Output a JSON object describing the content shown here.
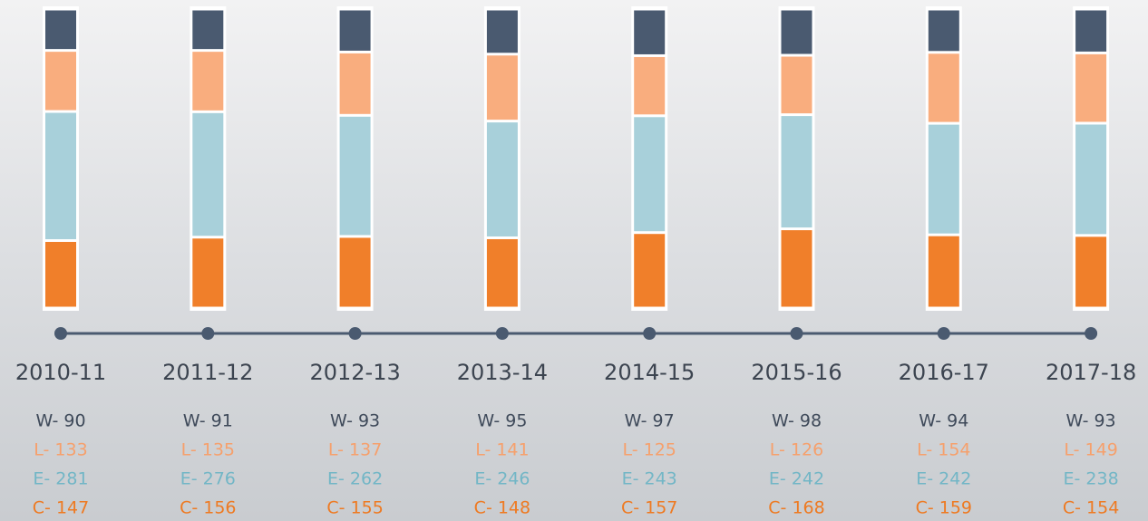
{
  "chart_data": {
    "type": "bar",
    "stacked": true,
    "normalized": true,
    "categories": [
      "2010-11",
      "2011-12",
      "2012-13",
      "2013-14",
      "2014-15",
      "2015-16",
      "2016-17",
      "2017-18"
    ],
    "series": [
      {
        "color": "#4a5a70",
        "label_color": "#3f4a5a",
        "values": [
          90,
          91,
          93,
          95,
          97,
          98,
          94,
          93
        ],
        "value_labels": [
          "W- 90",
          "W- 91",
          "W- 93",
          "W- 95",
          "W- 97",
          "W- 98",
          "W- 94",
          "W- 93"
        ]
      },
      {
        "color": "#f9ad7e",
        "label_color": "#f6a06c",
        "values": [
          133,
          135,
          137,
          141,
          125,
          126,
          154,
          149
        ],
        "value_labels": [
          "L- 133",
          "L- 135",
          "L- 137",
          "L- 141",
          "L- 125",
          "L- 126",
          "L- 154",
          "L- 149"
        ]
      },
      {
        "color": "#a8d0da",
        "label_color": "#72b6c6",
        "values": [
          281,
          276,
          262,
          246,
          243,
          242,
          242,
          238
        ],
        "value_labels": [
          "E- 281",
          "E- 276",
          "E- 262",
          "E- 246",
          "E- 243",
          "E- 242",
          "E- 242",
          "E- 238"
        ]
      },
      {
        "color": "#f07f2a",
        "label_color": "#ee7a22",
        "values": [
          147,
          156,
          155,
          148,
          157,
          168,
          159,
          154
        ],
        "value_labels": [
          "C- 147",
          "C- 156",
          "C- 155",
          "C- 148",
          "C- 157",
          "C- 168",
          "C- 159",
          "C- 154"
        ]
      }
    ]
  }
}
